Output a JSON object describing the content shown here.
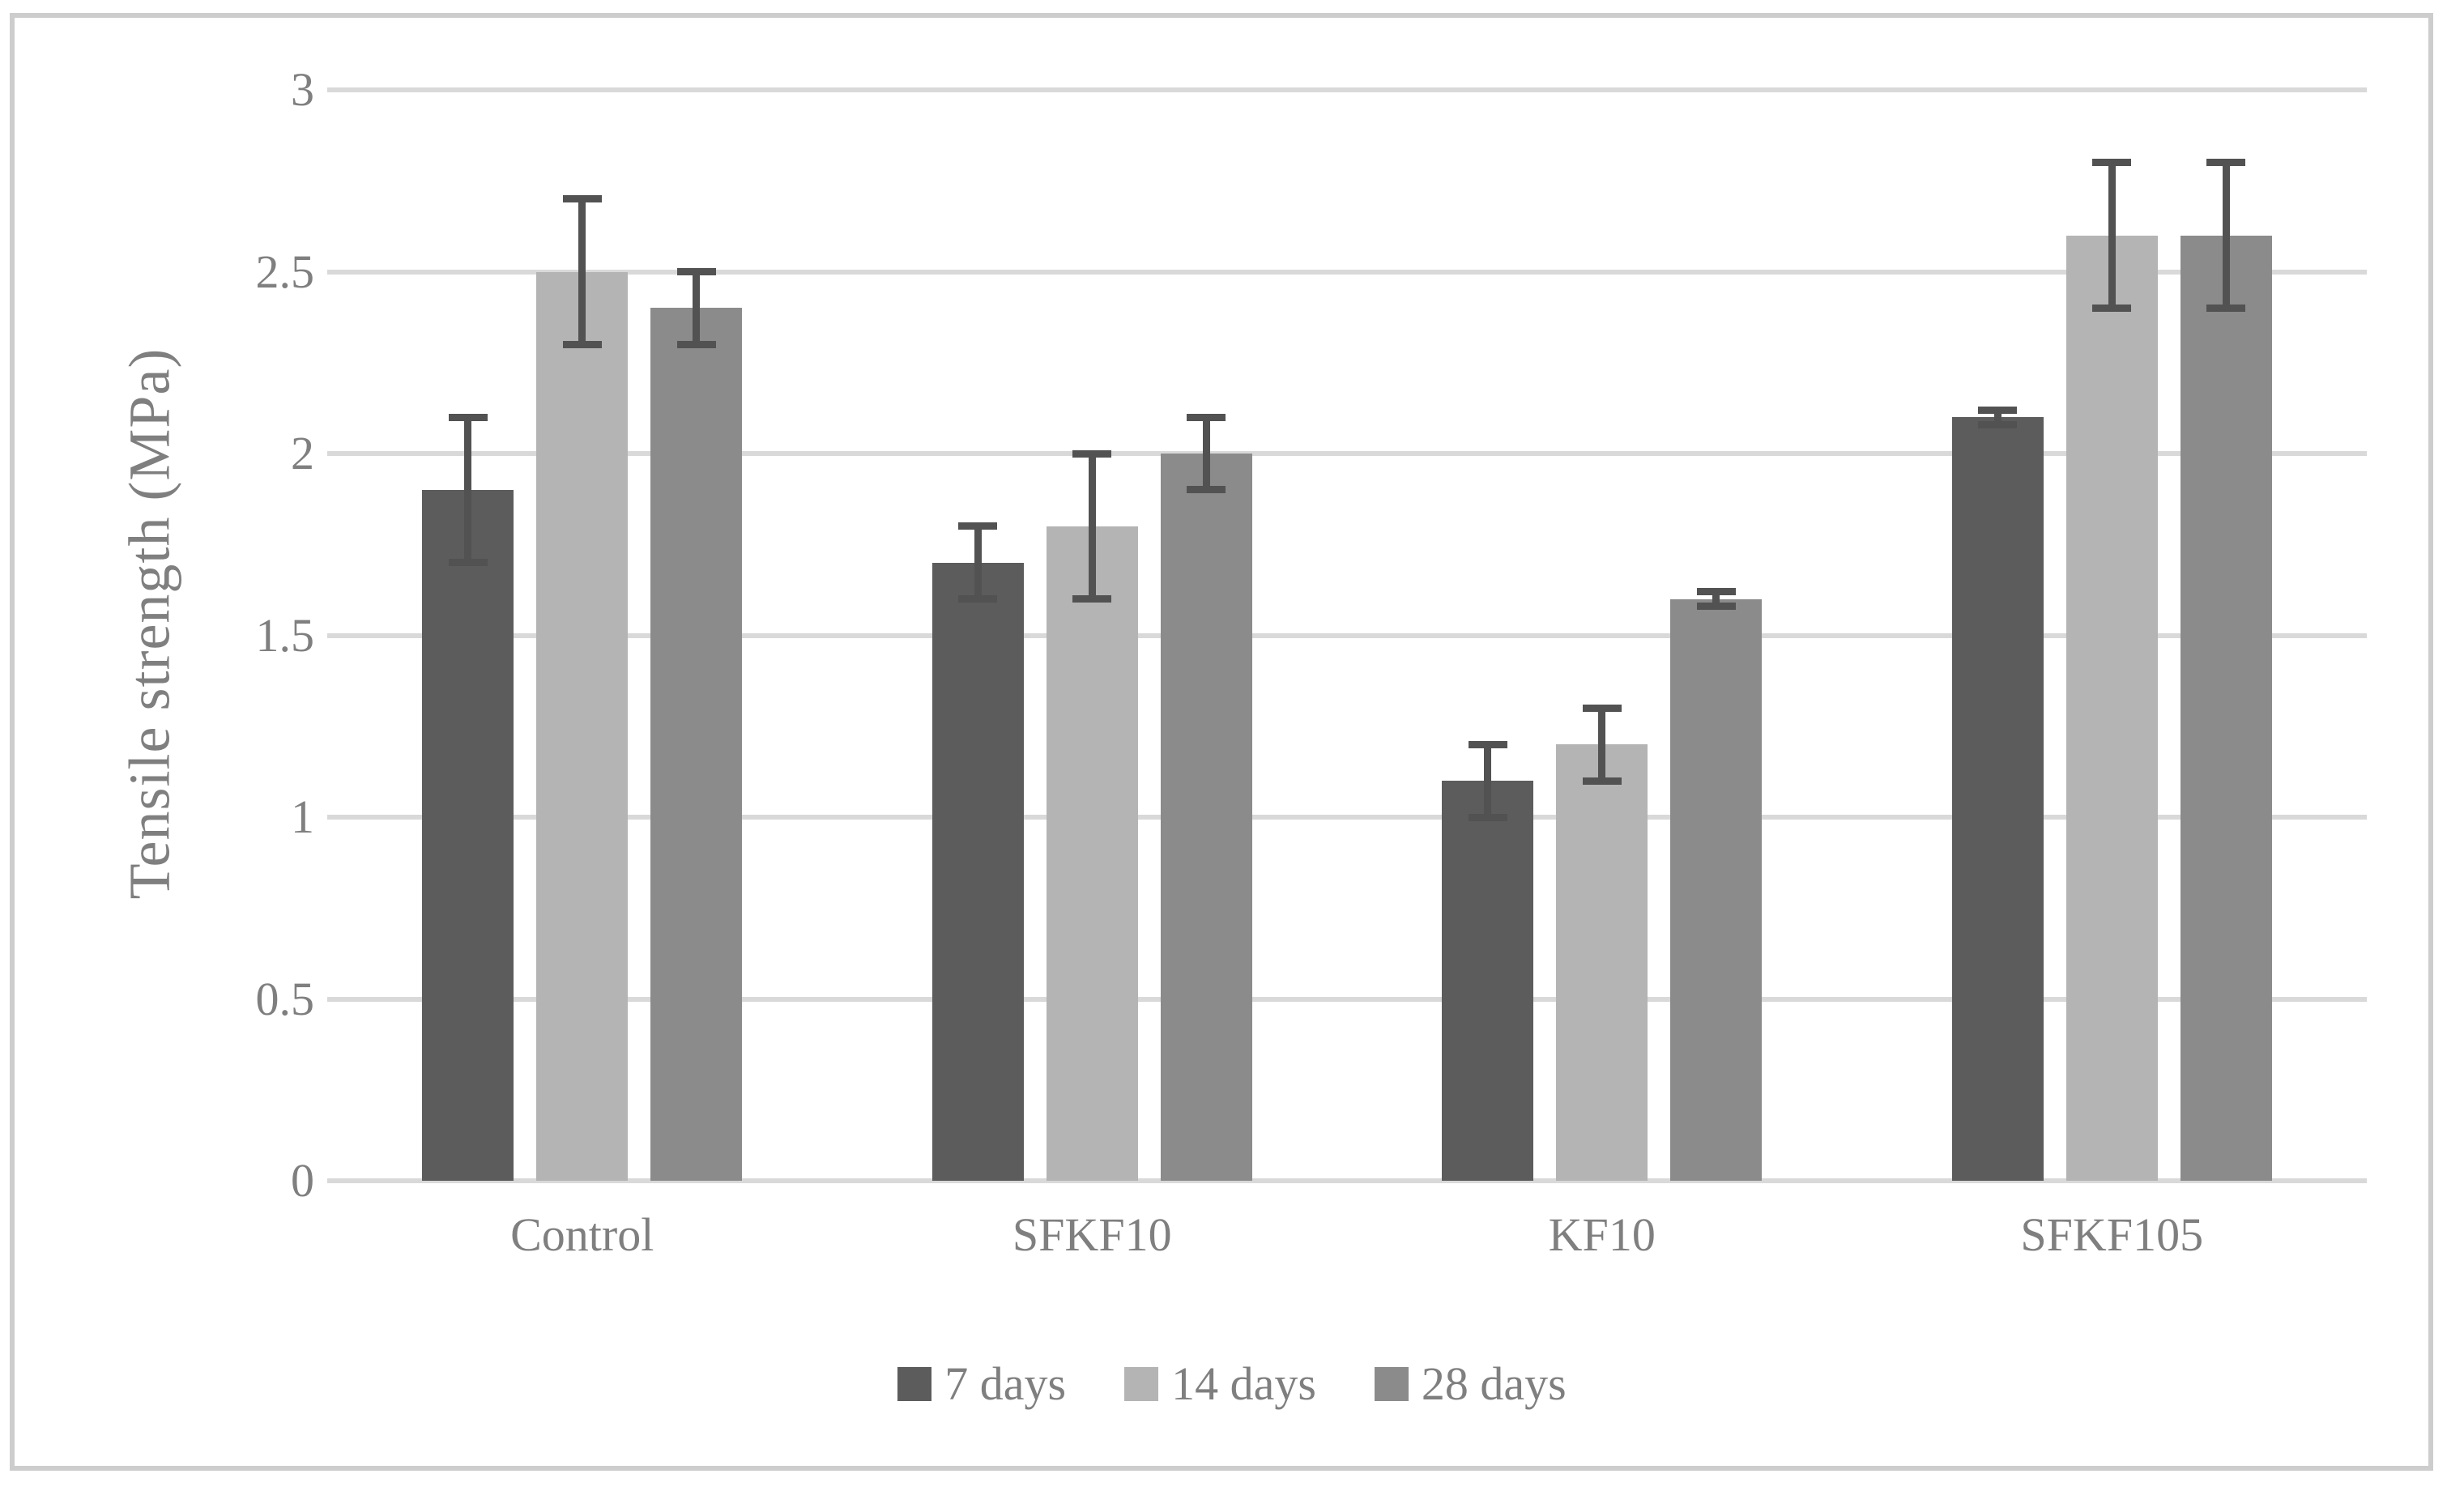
{
  "figure": {
    "background_color": "#ffffff",
    "border_color": "#cdcdcd"
  },
  "chart_data": {
    "type": "bar",
    "title": "",
    "xlabel": "",
    "ylabel": "Tensile strength (MPa)",
    "ylim": [
      0,
      3
    ],
    "ytick_values": [
      0,
      0.5,
      1,
      1.5,
      2,
      2.5,
      3
    ],
    "ytick_labels": [
      "0",
      "0.5",
      "1",
      "1.5",
      "2",
      "2.5",
      "3"
    ],
    "grid": true,
    "gridline_color": "#d9d9d9",
    "error_bar_color": "#525252",
    "text_color": "#7f7f7f",
    "legend_position": "bottom",
    "categories": [
      "Control",
      "SFKF10",
      "KF10",
      "SFKF105"
    ],
    "series": [
      {
        "name": "7 days",
        "color": "#5c5c5c",
        "values": [
          1.9,
          1.7,
          1.1,
          2.1
        ],
        "errors": [
          0.2,
          0.1,
          0.1,
          0.02
        ]
      },
      {
        "name": "14 days",
        "color": "#b4b4b4",
        "values": [
          2.5,
          1.8,
          1.2,
          2.6
        ],
        "errors": [
          0.2,
          0.2,
          0.1,
          0.2
        ]
      },
      {
        "name": "28 days",
        "color": "#8b8b8b",
        "values": [
          2.4,
          2.0,
          1.6,
          2.6
        ],
        "errors": [
          0.1,
          0.1,
          0.02,
          0.2
        ]
      }
    ]
  }
}
